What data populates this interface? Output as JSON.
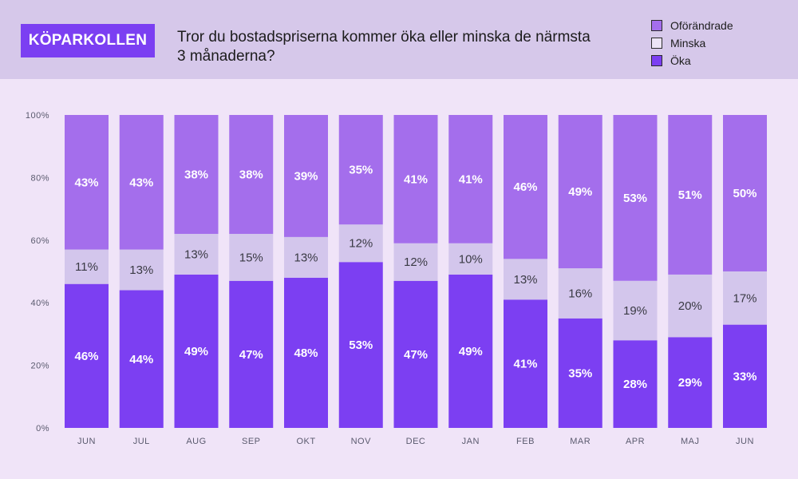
{
  "brand": {
    "label": "KÖPARKOLLEN"
  },
  "chart_data": {
    "type": "bar",
    "stacked": true,
    "title": "Tror du bostadspriserna kommer öka eller minska de närmsta 3 månaderna?",
    "categories": [
      "JUN",
      "JUL",
      "AUG",
      "SEP",
      "OKT",
      "NOV",
      "DEC",
      "JAN",
      "FEB",
      "MAR",
      "APR",
      "MAJ",
      "JUN"
    ],
    "series": [
      {
        "name": "Öka",
        "color": "#7c3ff2",
        "label_color": "#ffffff",
        "values": [
          46,
          44,
          49,
          47,
          48,
          53,
          47,
          49,
          41,
          35,
          28,
          29,
          33
        ]
      },
      {
        "name": "Minska",
        "color": "#d3c6ec",
        "label_color": "#3a3a44",
        "values": [
          11,
          13,
          13,
          15,
          13,
          12,
          12,
          10,
          13,
          16,
          19,
          20,
          17
        ]
      },
      {
        "name": "Oförändrade",
        "color": "#a46eec",
        "label_color": "#ffffff",
        "values": [
          43,
          43,
          38,
          38,
          39,
          35,
          41,
          41,
          46,
          49,
          53,
          51,
          50
        ]
      }
    ],
    "legend": [
      "Oförändrade",
      "Minska",
      "Öka"
    ],
    "legend_position": "top-right",
    "ylim": [
      0,
      100
    ],
    "yticks": [
      "0%",
      "20%",
      "40%",
      "60%",
      "80%",
      "100%"
    ]
  }
}
